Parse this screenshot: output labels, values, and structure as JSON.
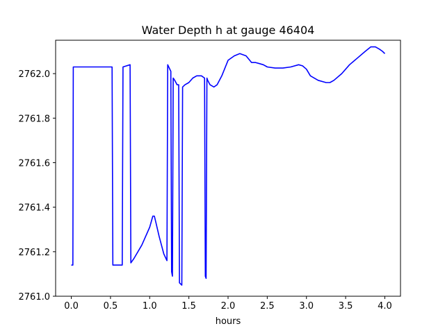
{
  "chart_data": {
    "type": "line",
    "title": "Water Depth h at gauge 46404",
    "xlabel": "hours",
    "ylabel": "",
    "xlim": [
      -0.2,
      4.2
    ],
    "ylim": [
      2761.0,
      2762.15
    ],
    "xticks": [
      0.0,
      0.5,
      1.0,
      1.5,
      2.0,
      2.5,
      3.0,
      3.5,
      4.0
    ],
    "xtick_labels": [
      "0.0",
      "0.5",
      "1.0",
      "1.5",
      "2.0",
      "2.5",
      "3.0",
      "3.5",
      "4.0"
    ],
    "yticks": [
      2761.0,
      2761.2,
      2761.4,
      2761.6,
      2761.8,
      2762.0
    ],
    "ytick_labels": [
      "2761.0",
      "2761.2",
      "2761.4",
      "2761.6",
      "2761.8",
      "2762.0"
    ],
    "grid": false,
    "series": [
      {
        "color": "#0000ff",
        "x": [
          0.0,
          0.02,
          0.025,
          0.52,
          0.53,
          0.65,
          0.66,
          0.75,
          0.76,
          0.8,
          0.9,
          1.0,
          1.04,
          1.06,
          1.08,
          1.12,
          1.18,
          1.22,
          1.23,
          1.27,
          1.28,
          1.29,
          1.3,
          1.32,
          1.35,
          1.37,
          1.38,
          1.41,
          1.42,
          1.45,
          1.5,
          1.55,
          1.6,
          1.66,
          1.7,
          1.71,
          1.72,
          1.73,
          1.74,
          1.77,
          1.82,
          1.86,
          1.92,
          2.0,
          2.08,
          2.15,
          2.23,
          2.3,
          2.35,
          2.4,
          2.45,
          2.5,
          2.6,
          2.7,
          2.8,
          2.9,
          2.95,
          3.0,
          3.05,
          3.15,
          3.25,
          3.3,
          3.35,
          3.45,
          3.55,
          3.65,
          3.75,
          3.82,
          3.88,
          3.93,
          3.97,
          4.0
        ],
        "y": [
          2761.14,
          2761.14,
          2762.03,
          2762.03,
          2761.14,
          2761.14,
          2762.03,
          2762.04,
          2761.15,
          2761.17,
          2761.23,
          2761.31,
          2761.36,
          2761.36,
          2761.33,
          2761.27,
          2761.19,
          2761.16,
          2762.04,
          2762.01,
          2761.11,
          2761.09,
          2761.98,
          2761.97,
          2761.95,
          2761.95,
          2761.06,
          2761.05,
          2761.94,
          2761.95,
          2761.96,
          2761.98,
          2761.99,
          2761.99,
          2761.98,
          2761.09,
          2761.08,
          2761.98,
          2761.97,
          2761.95,
          2761.94,
          2761.95,
          2761.99,
          2762.06,
          2762.08,
          2762.09,
          2762.08,
          2762.05,
          2762.05,
          2762.045,
          2762.04,
          2762.03,
          2762.025,
          2762.025,
          2762.03,
          2762.04,
          2762.035,
          2762.02,
          2761.99,
          2761.97,
          2761.96,
          2761.96,
          2761.97,
          2762.0,
          2762.04,
          2762.07,
          2762.1,
          2762.12,
          2762.12,
          2762.11,
          2762.1,
          2762.09
        ]
      }
    ]
  }
}
